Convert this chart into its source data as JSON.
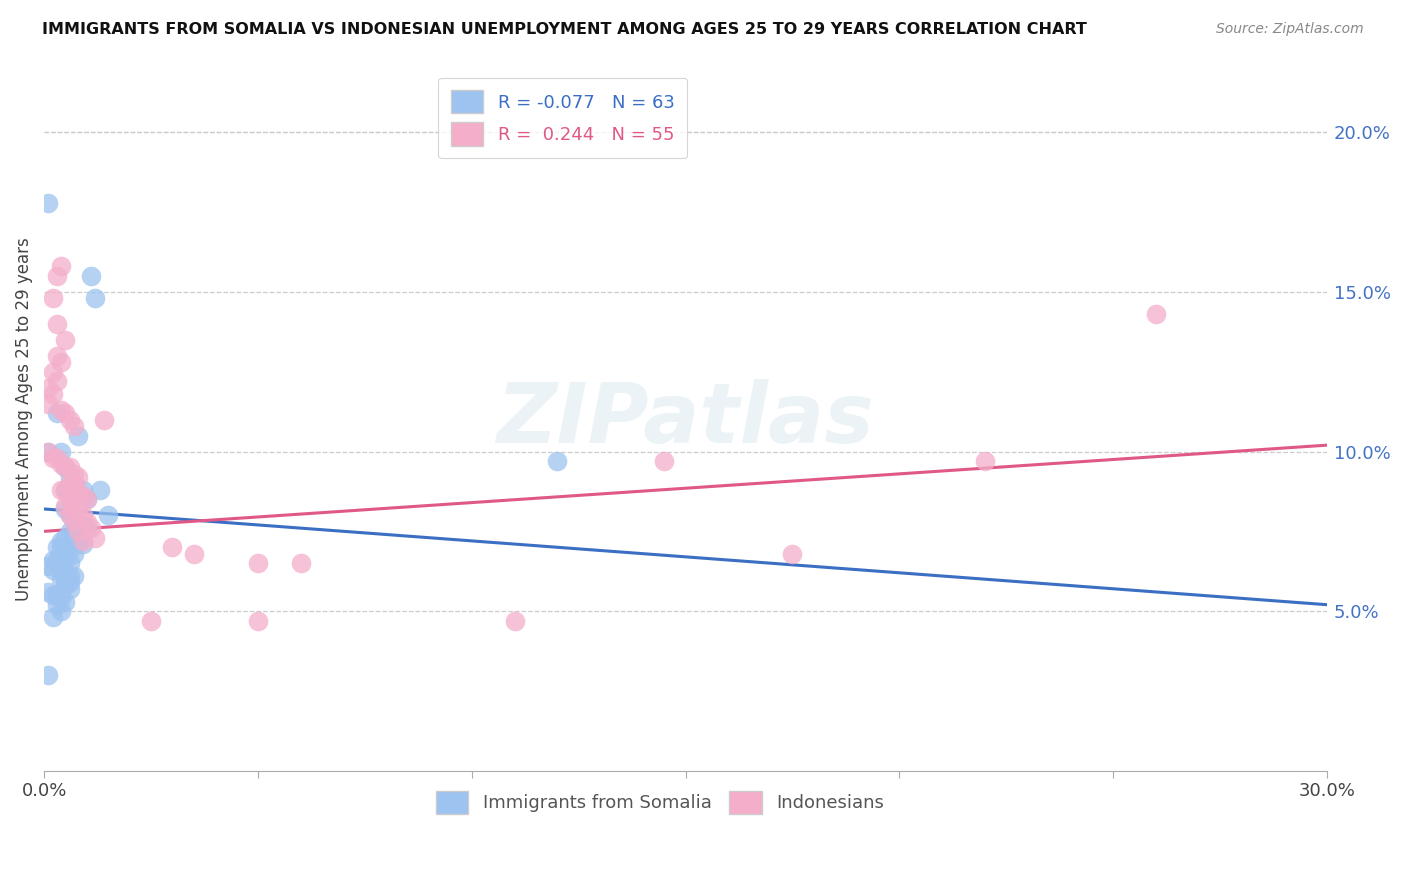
{
  "title": "IMMIGRANTS FROM SOMALIA VS INDONESIAN UNEMPLOYMENT AMONG AGES 25 TO 29 YEARS CORRELATION CHART",
  "source": "Source: ZipAtlas.com",
  "ylabel": "Unemployment Among Ages 25 to 29 years",
  "xlim": [
    0.0,
    0.3
  ],
  "ylim": [
    0.0,
    0.22
  ],
  "xticks": [
    0.0,
    0.05,
    0.1,
    0.15,
    0.2,
    0.25,
    0.3
  ],
  "xticklabels": [
    "0.0%",
    "",
    "",
    "",
    "",
    "",
    "30.0%"
  ],
  "yticks_right": [
    0.05,
    0.1,
    0.15,
    0.2
  ],
  "ytick_right_labels": [
    "5.0%",
    "10.0%",
    "15.0%",
    "20.0%"
  ],
  "legend_R1": "-0.077",
  "legend_N1": "63",
  "legend_R2": "0.244",
  "legend_N2": "55",
  "color_blue": "#9DC3F0",
  "color_pink": "#F4AECA",
  "color_blue_line": "#3A6FC4",
  "color_pink_line": "#E05888",
  "somalia_points": [
    [
      0.001,
      0.178
    ],
    [
      0.011,
      0.155
    ],
    [
      0.012,
      0.148
    ],
    [
      0.004,
      0.1
    ],
    [
      0.005,
      0.095
    ],
    [
      0.006,
      0.092
    ],
    [
      0.003,
      0.112
    ],
    [
      0.008,
      0.105
    ],
    [
      0.001,
      0.1
    ],
    [
      0.007,
      0.09
    ],
    [
      0.005,
      0.088
    ],
    [
      0.006,
      0.086
    ],
    [
      0.009,
      0.088
    ],
    [
      0.01,
      0.085
    ],
    [
      0.013,
      0.088
    ],
    [
      0.007,
      0.085
    ],
    [
      0.008,
      0.083
    ],
    [
      0.005,
      0.082
    ],
    [
      0.006,
      0.08
    ],
    [
      0.015,
      0.08
    ],
    [
      0.007,
      0.078
    ],
    [
      0.008,
      0.078
    ],
    [
      0.009,
      0.077
    ],
    [
      0.01,
      0.076
    ],
    [
      0.006,
      0.075
    ],
    [
      0.007,
      0.074
    ],
    [
      0.005,
      0.073
    ],
    [
      0.004,
      0.072
    ],
    [
      0.008,
      0.072
    ],
    [
      0.009,
      0.071
    ],
    [
      0.003,
      0.07
    ],
    [
      0.004,
      0.07
    ],
    [
      0.006,
      0.069
    ],
    [
      0.007,
      0.068
    ],
    [
      0.005,
      0.068
    ],
    [
      0.004,
      0.067
    ],
    [
      0.003,
      0.066
    ],
    [
      0.002,
      0.066
    ],
    [
      0.005,
      0.066
    ],
    [
      0.006,
      0.065
    ],
    [
      0.004,
      0.065
    ],
    [
      0.003,
      0.065
    ],
    [
      0.001,
      0.064
    ],
    [
      0.002,
      0.063
    ],
    [
      0.004,
      0.063
    ],
    [
      0.005,
      0.062
    ],
    [
      0.006,
      0.061
    ],
    [
      0.007,
      0.061
    ],
    [
      0.005,
      0.06
    ],
    [
      0.004,
      0.06
    ],
    [
      0.006,
      0.059
    ],
    [
      0.005,
      0.058
    ],
    [
      0.006,
      0.057
    ],
    [
      0.001,
      0.056
    ],
    [
      0.002,
      0.055
    ],
    [
      0.003,
      0.055
    ],
    [
      0.004,
      0.054
    ],
    [
      0.005,
      0.053
    ],
    [
      0.003,
      0.052
    ],
    [
      0.004,
      0.05
    ],
    [
      0.002,
      0.048
    ],
    [
      0.001,
      0.03
    ],
    [
      0.12,
      0.097
    ]
  ],
  "indonesian_points": [
    [
      0.004,
      0.158
    ],
    [
      0.003,
      0.155
    ],
    [
      0.003,
      0.14
    ],
    [
      0.002,
      0.148
    ],
    [
      0.005,
      0.135
    ],
    [
      0.003,
      0.13
    ],
    [
      0.004,
      0.128
    ],
    [
      0.002,
      0.125
    ],
    [
      0.003,
      0.122
    ],
    [
      0.001,
      0.12
    ],
    [
      0.002,
      0.118
    ],
    [
      0.001,
      0.115
    ],
    [
      0.004,
      0.113
    ],
    [
      0.005,
      0.112
    ],
    [
      0.006,
      0.11
    ],
    [
      0.007,
      0.108
    ],
    [
      0.001,
      0.1
    ],
    [
      0.002,
      0.098
    ],
    [
      0.003,
      0.098
    ],
    [
      0.004,
      0.096
    ],
    [
      0.005,
      0.095
    ],
    [
      0.006,
      0.095
    ],
    [
      0.007,
      0.093
    ],
    [
      0.008,
      0.092
    ],
    [
      0.007,
      0.09
    ],
    [
      0.006,
      0.09
    ],
    [
      0.005,
      0.088
    ],
    [
      0.004,
      0.088
    ],
    [
      0.008,
      0.087
    ],
    [
      0.009,
      0.086
    ],
    [
      0.01,
      0.085
    ],
    [
      0.006,
      0.085
    ],
    [
      0.005,
      0.083
    ],
    [
      0.007,
      0.082
    ],
    [
      0.008,
      0.082
    ],
    [
      0.009,
      0.08
    ],
    [
      0.006,
      0.08
    ],
    [
      0.01,
      0.078
    ],
    [
      0.007,
      0.078
    ],
    [
      0.011,
      0.076
    ],
    [
      0.008,
      0.075
    ],
    [
      0.012,
      0.073
    ],
    [
      0.009,
      0.072
    ],
    [
      0.014,
      0.11
    ],
    [
      0.03,
      0.07
    ],
    [
      0.035,
      0.068
    ],
    [
      0.05,
      0.065
    ],
    [
      0.06,
      0.065
    ],
    [
      0.025,
      0.047
    ],
    [
      0.05,
      0.047
    ],
    [
      0.11,
      0.047
    ],
    [
      0.145,
      0.097
    ],
    [
      0.175,
      0.068
    ],
    [
      0.22,
      0.097
    ],
    [
      0.26,
      0.143
    ]
  ],
  "blue_line": {
    "x0": 0.0,
    "y0": 0.082,
    "x1": 0.3,
    "y1": 0.052
  },
  "pink_line": {
    "x0": 0.0,
    "y0": 0.075,
    "x1": 0.3,
    "y1": 0.102
  }
}
